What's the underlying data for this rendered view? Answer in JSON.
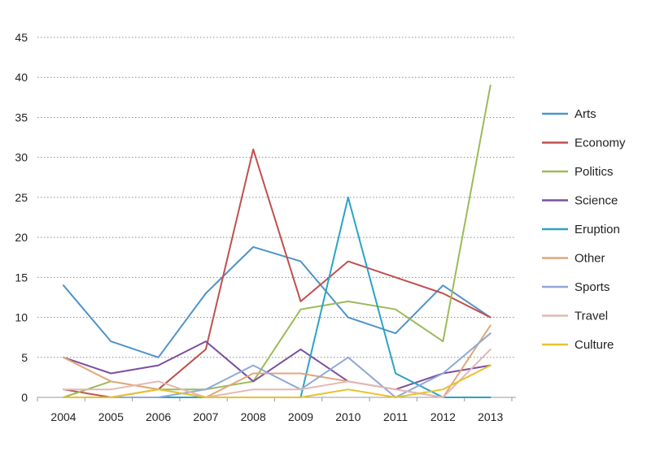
{
  "chart_data": {
    "type": "line",
    "title": "",
    "xlabel": "",
    "ylabel": "",
    "x": [
      "2004",
      "2005",
      "2006",
      "2007",
      "2008",
      "2009",
      "2010",
      "2011",
      "2012",
      "2013"
    ],
    "ylim": [
      0,
      45
    ],
    "yticks": [
      0,
      5,
      10,
      15,
      20,
      25,
      30,
      35,
      40,
      45
    ],
    "grid": "horizontal-dotted",
    "legend": "right",
    "series": [
      {
        "name": "Arts",
        "color": "#4f93c9",
        "values": [
          14,
          7,
          5,
          13,
          18.8,
          17,
          10,
          8,
          14,
          10
        ]
      },
      {
        "name": "Economy",
        "color": "#c0504d",
        "values": [
          1,
          0,
          1,
          6,
          31,
          12,
          17,
          15,
          13,
          10
        ]
      },
      {
        "name": "Politics",
        "color": "#9bbb59",
        "values": [
          0,
          2,
          1,
          1,
          2,
          11,
          12,
          11,
          7,
          39
        ]
      },
      {
        "name": "Science",
        "color": "#7b4f9d",
        "values": [
          5,
          3,
          4,
          7,
          2,
          6,
          2,
          1,
          3,
          4
        ]
      },
      {
        "name": "Eruption",
        "color": "#2ba3c4",
        "values": [
          0,
          0,
          0,
          0,
          0,
          0,
          25,
          3,
          0,
          0
        ]
      },
      {
        "name": "Other",
        "color": "#e3a678",
        "values": [
          5,
          2,
          1,
          0,
          3,
          3,
          2,
          1,
          0,
          9
        ]
      },
      {
        "name": "Sports",
        "color": "#8fa9d6",
        "values": [
          0,
          0,
          0,
          1,
          4,
          1,
          5,
          0,
          3,
          8
        ]
      },
      {
        "name": "Travel",
        "color": "#e2b8b6",
        "values": [
          1,
          1,
          2,
          0,
          1,
          1,
          2,
          1,
          0,
          6
        ]
      },
      {
        "name": "Culture",
        "color": "#e6c32e",
        "values": [
          0,
          0,
          1,
          0,
          0,
          0,
          1,
          0,
          1,
          4
        ]
      }
    ]
  }
}
